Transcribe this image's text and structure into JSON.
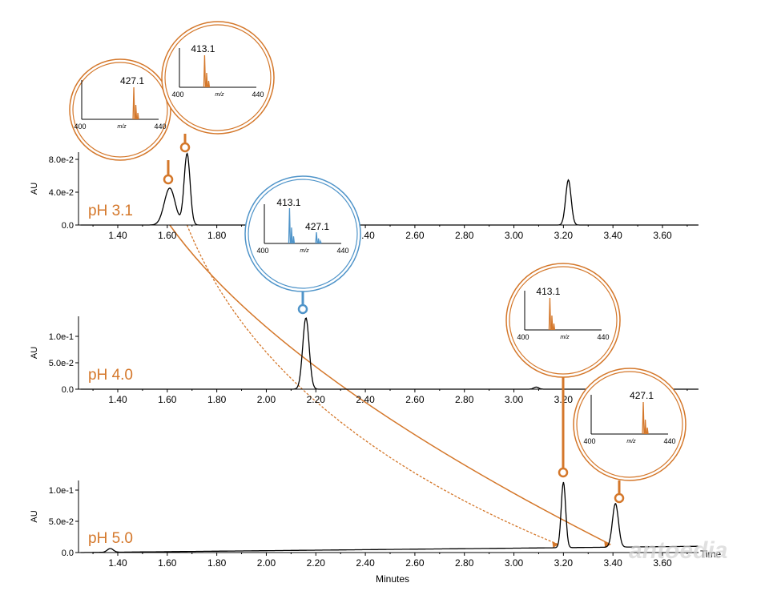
{
  "colors": {
    "trace": "#000000",
    "orange": "#d4772a",
    "blue": "#4f94c9",
    "axis": "#000000",
    "watermark": "#cfcfcf"
  },
  "labels": {
    "ylabel_panel": "AU",
    "xlabel": "Minutes",
    "time_label": "Time",
    "watermark": "antoedia"
  },
  "chart_data": {
    "type": "line",
    "xlabel": "Minutes",
    "x_ticks": [
      "1.40",
      "1.60",
      "1.80",
      "2.00",
      "2.20",
      "2.40",
      "2.60",
      "2.80",
      "3.00",
      "3.20",
      "3.40",
      "3.60"
    ],
    "xlim": [
      1.25,
      3.75
    ],
    "panels": [
      {
        "name": "pH 3.1",
        "ylabel": "AU",
        "y_ticks": [
          "0.0",
          "4.0e-2",
          "8.0e-2"
        ],
        "ylim": [
          0,
          0.1
        ],
        "peaks": [
          {
            "rt": 1.61,
            "height": 0.045,
            "width": 0.022
          },
          {
            "rt": 1.68,
            "height": 0.087,
            "width": 0.012
          },
          {
            "rt": 3.22,
            "height": 0.055,
            "width": 0.011
          }
        ],
        "baseline": 0.0
      },
      {
        "name": "pH 4.0",
        "ylabel": "AU",
        "y_ticks": [
          "0.0",
          "5.0e-2",
          "1.0e-1"
        ],
        "ylim": [
          0,
          0.13
        ],
        "peaks": [
          {
            "rt": 2.16,
            "height": 0.135,
            "width": 0.013
          },
          {
            "rt": 3.09,
            "height": 0.004,
            "width": 0.01
          }
        ],
        "baseline": 0.0
      },
      {
        "name": "pH 5.0",
        "ylabel": "AU",
        "y_ticks": [
          "0.0",
          "5.0e-2",
          "1.0e-1"
        ],
        "ylim": [
          0,
          0.13
        ],
        "peaks": [
          {
            "rt": 1.37,
            "height": 0.006,
            "width": 0.012
          },
          {
            "rt": 3.2,
            "height": 0.105,
            "width": 0.009
          },
          {
            "rt": 3.41,
            "height": 0.07,
            "width": 0.012
          }
        ],
        "baseline": 0.01
      }
    ],
    "mass_spectra": [
      {
        "color": "orange",
        "label": "427.1",
        "xmin": "400",
        "xmax": "440",
        "xlabel": "m/z",
        "panel": "pH 3.1",
        "rt": 1.61
      },
      {
        "color": "orange",
        "label": "413.1",
        "xmin": "400",
        "xmax": "440",
        "xlabel": "m/z",
        "panel": "pH 3.1",
        "rt": 1.68
      },
      {
        "color": "blue",
        "labels": [
          "413.1",
          "427.1"
        ],
        "xmin": "400",
        "xmax": "440",
        "xlabel": "m/z",
        "panel": "pH 4.0",
        "rt": 2.16
      },
      {
        "color": "orange",
        "label": "413.1",
        "xmin": "400",
        "xmax": "440",
        "xlabel": "m/z",
        "panel": "pH 5.0",
        "rt": 3.2
      },
      {
        "color": "orange",
        "label": "427.1",
        "xmin": "400",
        "xmax": "440",
        "xlabel": "m/z",
        "panel": "pH 5.0",
        "rt": 3.41
      }
    ]
  }
}
